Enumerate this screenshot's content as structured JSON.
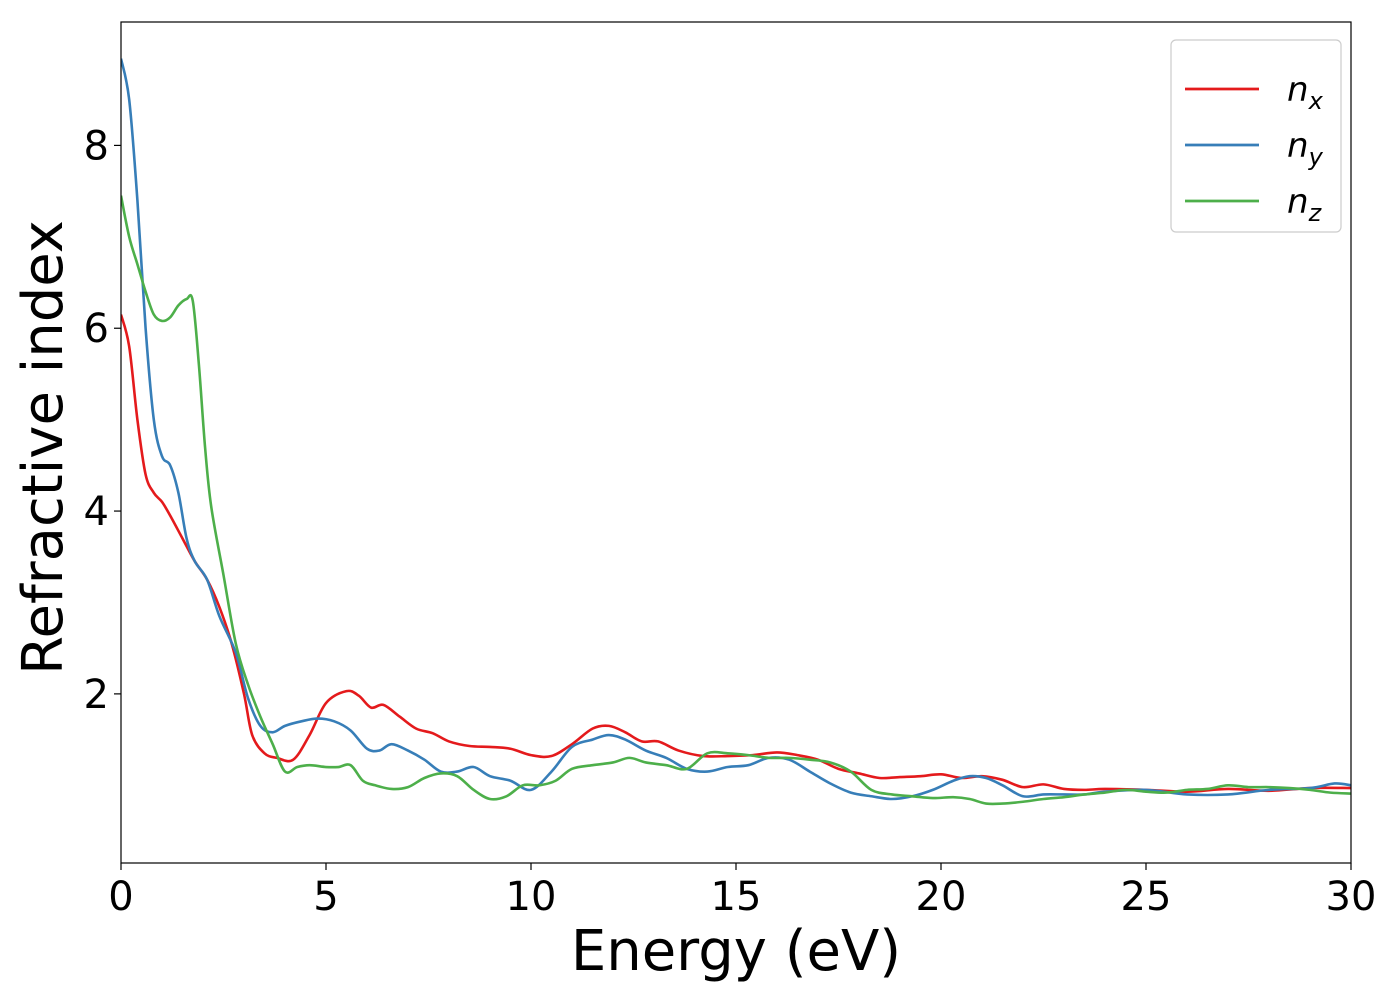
{
  "chart_data": {
    "type": "line",
    "xlabel": "Energy (eV)",
    "ylabel": "Refractive index",
    "xlim": [
      0,
      30
    ],
    "ylim": [
      0.15,
      9.35
    ],
    "xticks": [
      0,
      5,
      10,
      15,
      20,
      25,
      30
    ],
    "yticks": [
      2,
      4,
      6,
      8
    ],
    "grid": false,
    "legend_position": "top-right",
    "series": [
      {
        "name": "n_x",
        "legend_base": "n",
        "legend_sub": "x",
        "color": "#e41a1c",
        "x": [
          0,
          0.2,
          0.4,
          0.6,
          0.8,
          1.0,
          1.2,
          1.5,
          1.8,
          2.1,
          2.4,
          2.7,
          3.0,
          3.2,
          3.5,
          3.8,
          4.2,
          4.6,
          5.0,
          5.5,
          5.8,
          6.1,
          6.4,
          6.8,
          7.2,
          7.6,
          8.0,
          8.5,
          9.0,
          9.5,
          10.0,
          10.5,
          11.0,
          11.5,
          11.9,
          12.3,
          12.7,
          13.1,
          13.6,
          14.2,
          14.8,
          15.4,
          16.0,
          16.5,
          17.0,
          17.5,
          18.0,
          18.5,
          19.0,
          19.5,
          20.0,
          20.5,
          21.0,
          21.5,
          22.0,
          22.5,
          23.0,
          23.5,
          24.0,
          25.0,
          26.0,
          27.0,
          28.0,
          29.0,
          30.0
        ],
        "y": [
          6.15,
          5.8,
          5.0,
          4.4,
          4.2,
          4.1,
          3.95,
          3.7,
          3.45,
          3.25,
          2.95,
          2.55,
          2.0,
          1.55,
          1.35,
          1.3,
          1.28,
          1.55,
          1.9,
          2.03,
          1.98,
          1.85,
          1.88,
          1.75,
          1.62,
          1.57,
          1.48,
          1.43,
          1.42,
          1.4,
          1.33,
          1.32,
          1.45,
          1.62,
          1.65,
          1.58,
          1.48,
          1.48,
          1.38,
          1.32,
          1.32,
          1.33,
          1.36,
          1.33,
          1.28,
          1.18,
          1.13,
          1.08,
          1.09,
          1.1,
          1.12,
          1.08,
          1.1,
          1.06,
          0.98,
          1.01,
          0.96,
          0.95,
          0.96,
          0.95,
          0.93,
          0.96,
          0.94,
          0.97,
          0.97
        ]
      },
      {
        "name": "n_y",
        "legend_base": "n",
        "legend_sub": "y",
        "color": "#377eb8",
        "x": [
          0,
          0.2,
          0.4,
          0.6,
          0.8,
          1.0,
          1.2,
          1.4,
          1.6,
          1.8,
          2.1,
          2.4,
          2.8,
          3.1,
          3.4,
          3.7,
          4.0,
          4.4,
          4.8,
          5.2,
          5.6,
          6.0,
          6.3,
          6.6,
          7.0,
          7.4,
          7.8,
          8.2,
          8.6,
          9.0,
          9.5,
          10.0,
          10.5,
          11.0,
          11.5,
          11.9,
          12.3,
          12.8,
          13.3,
          13.8,
          14.3,
          14.8,
          15.3,
          15.8,
          16.3,
          16.8,
          17.3,
          17.8,
          18.3,
          18.8,
          19.3,
          19.8,
          20.3,
          20.7,
          21.1,
          21.5,
          22.0,
          22.5,
          23.0,
          23.5,
          24.0,
          25.0,
          26.0,
          27.0,
          28.0,
          29.0,
          29.6,
          30.0
        ],
        "y": [
          8.95,
          8.5,
          7.4,
          6.0,
          5.0,
          4.6,
          4.5,
          4.2,
          3.7,
          3.45,
          3.25,
          2.85,
          2.45,
          1.95,
          1.65,
          1.58,
          1.65,
          1.7,
          1.73,
          1.7,
          1.6,
          1.4,
          1.38,
          1.45,
          1.38,
          1.28,
          1.15,
          1.15,
          1.2,
          1.1,
          1.05,
          0.95,
          1.15,
          1.42,
          1.5,
          1.55,
          1.5,
          1.38,
          1.3,
          1.18,
          1.15,
          1.2,
          1.22,
          1.3,
          1.28,
          1.15,
          1.02,
          0.92,
          0.88,
          0.85,
          0.88,
          0.95,
          1.05,
          1.1,
          1.08,
          1.0,
          0.88,
          0.9,
          0.9,
          0.9,
          0.93,
          0.95,
          0.9,
          0.9,
          0.95,
          0.97,
          1.02,
          1.0
        ]
      },
      {
        "name": "n_z",
        "legend_base": "n",
        "legend_sub": "z",
        "color": "#4daf4a",
        "x": [
          0,
          0.2,
          0.4,
          0.6,
          0.8,
          1.0,
          1.2,
          1.4,
          1.6,
          1.75,
          1.9,
          2.05,
          2.2,
          2.5,
          2.8,
          3.1,
          3.4,
          3.7,
          4.0,
          4.3,
          4.6,
          5.0,
          5.3,
          5.6,
          5.9,
          6.2,
          6.6,
          7.0,
          7.4,
          7.8,
          8.2,
          8.6,
          9.0,
          9.4,
          9.8,
          10.2,
          10.6,
          11.0,
          11.5,
          12.0,
          12.4,
          12.8,
          13.3,
          13.8,
          14.3,
          14.8,
          15.3,
          15.8,
          16.3,
          16.8,
          17.3,
          17.8,
          18.3,
          18.8,
          19.3,
          19.8,
          20.3,
          20.7,
          21.1,
          21.5,
          22.0,
          22.5,
          23.0,
          23.5,
          24.0,
          24.5,
          25.0,
          25.5,
          26.0,
          26.5,
          27.0,
          27.5,
          28.0,
          28.5,
          29.0,
          29.5,
          30.0
        ],
        "y": [
          7.45,
          7.0,
          6.7,
          6.4,
          6.15,
          6.08,
          6.12,
          6.25,
          6.32,
          6.3,
          5.6,
          4.7,
          4.05,
          3.3,
          2.55,
          2.1,
          1.75,
          1.45,
          1.15,
          1.2,
          1.22,
          1.2,
          1.2,
          1.22,
          1.05,
          1.0,
          0.96,
          0.98,
          1.08,
          1.13,
          1.1,
          0.95,
          0.85,
          0.88,
          1.0,
          1.0,
          1.05,
          1.18,
          1.22,
          1.25,
          1.3,
          1.25,
          1.22,
          1.18,
          1.35,
          1.35,
          1.33,
          1.3,
          1.3,
          1.28,
          1.25,
          1.15,
          0.95,
          0.9,
          0.88,
          0.86,
          0.87,
          0.85,
          0.8,
          0.8,
          0.82,
          0.85,
          0.87,
          0.9,
          0.92,
          0.95,
          0.93,
          0.92,
          0.95,
          0.96,
          1.0,
          0.98,
          0.98,
          0.97,
          0.95,
          0.92,
          0.91
        ]
      }
    ]
  }
}
